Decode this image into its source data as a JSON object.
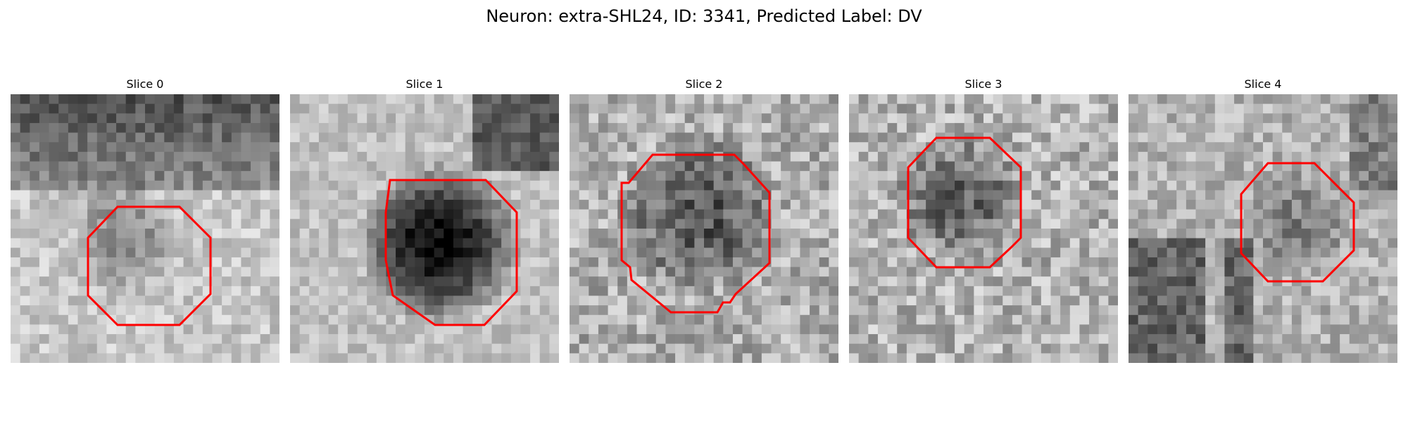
{
  "figure": {
    "title": "Neuron: extra-SHL24, ID: 3341, Predicted Label: DV"
  },
  "panels": [
    {
      "title": "Slice 0"
    },
    {
      "title": "Slice 1"
    },
    {
      "title": "Slice 2"
    },
    {
      "title": "Slice 3"
    },
    {
      "title": "Slice 4"
    }
  ],
  "style": {
    "outline_color": "#ff0000",
    "background": "#ffffff",
    "image_colormap": "grayscale"
  }
}
